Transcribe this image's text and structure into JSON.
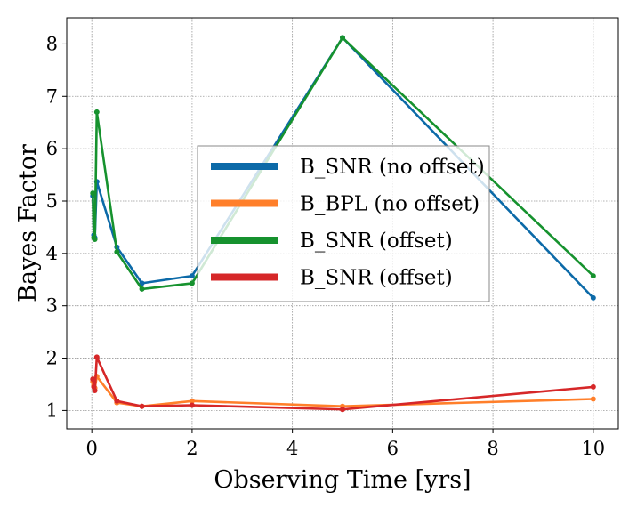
{
  "chart_data": {
    "type": "line",
    "title": "",
    "xlabel": "Observing Time [yrs]",
    "ylabel": "Bayes Factor",
    "xlim": [
      -0.5,
      10.5
    ],
    "ylim": [
      0.65,
      8.5
    ],
    "x_ticks": [
      0,
      2,
      4,
      6,
      8,
      10
    ],
    "y_ticks": [
      1,
      2,
      3,
      4,
      5,
      6,
      7,
      8
    ],
    "grid": true,
    "legend_position": "center",
    "series": [
      {
        "name": "B_SNR (no offset)",
        "color": "#0c6aa8",
        "x": [
          0.02,
          0.04,
          0.06,
          0.1,
          0.5,
          1,
          2,
          5,
          10
        ],
        "y": [
          5.1,
          4.35,
          4.3,
          5.37,
          4.12,
          3.43,
          3.57,
          8.12,
          3.15
        ]
      },
      {
        "name": "B_BPL (no offset)",
        "color": "#ff7f2a",
        "x": [
          0.02,
          0.04,
          0.06,
          0.1,
          0.5,
          1,
          2,
          5,
          10
        ],
        "y": [
          1.55,
          1.48,
          1.43,
          1.65,
          1.15,
          1.08,
          1.18,
          1.08,
          1.22
        ]
      },
      {
        "name": "B_SNR (offset)",
        "color": "#16922e",
        "x": [
          0.02,
          0.04,
          0.06,
          0.1,
          0.5,
          1,
          2,
          5,
          10
        ],
        "y": [
          5.15,
          4.3,
          4.27,
          6.7,
          4.03,
          3.32,
          3.43,
          8.12,
          3.57
        ]
      },
      {
        "name": "B_SNR (offset)",
        "color": "#d62728",
        "x": [
          0.02,
          0.04,
          0.06,
          0.1,
          0.5,
          1,
          2,
          5,
          10
        ],
        "y": [
          1.6,
          1.45,
          1.38,
          2.02,
          1.18,
          1.08,
          1.1,
          1.02,
          1.45
        ]
      }
    ]
  }
}
